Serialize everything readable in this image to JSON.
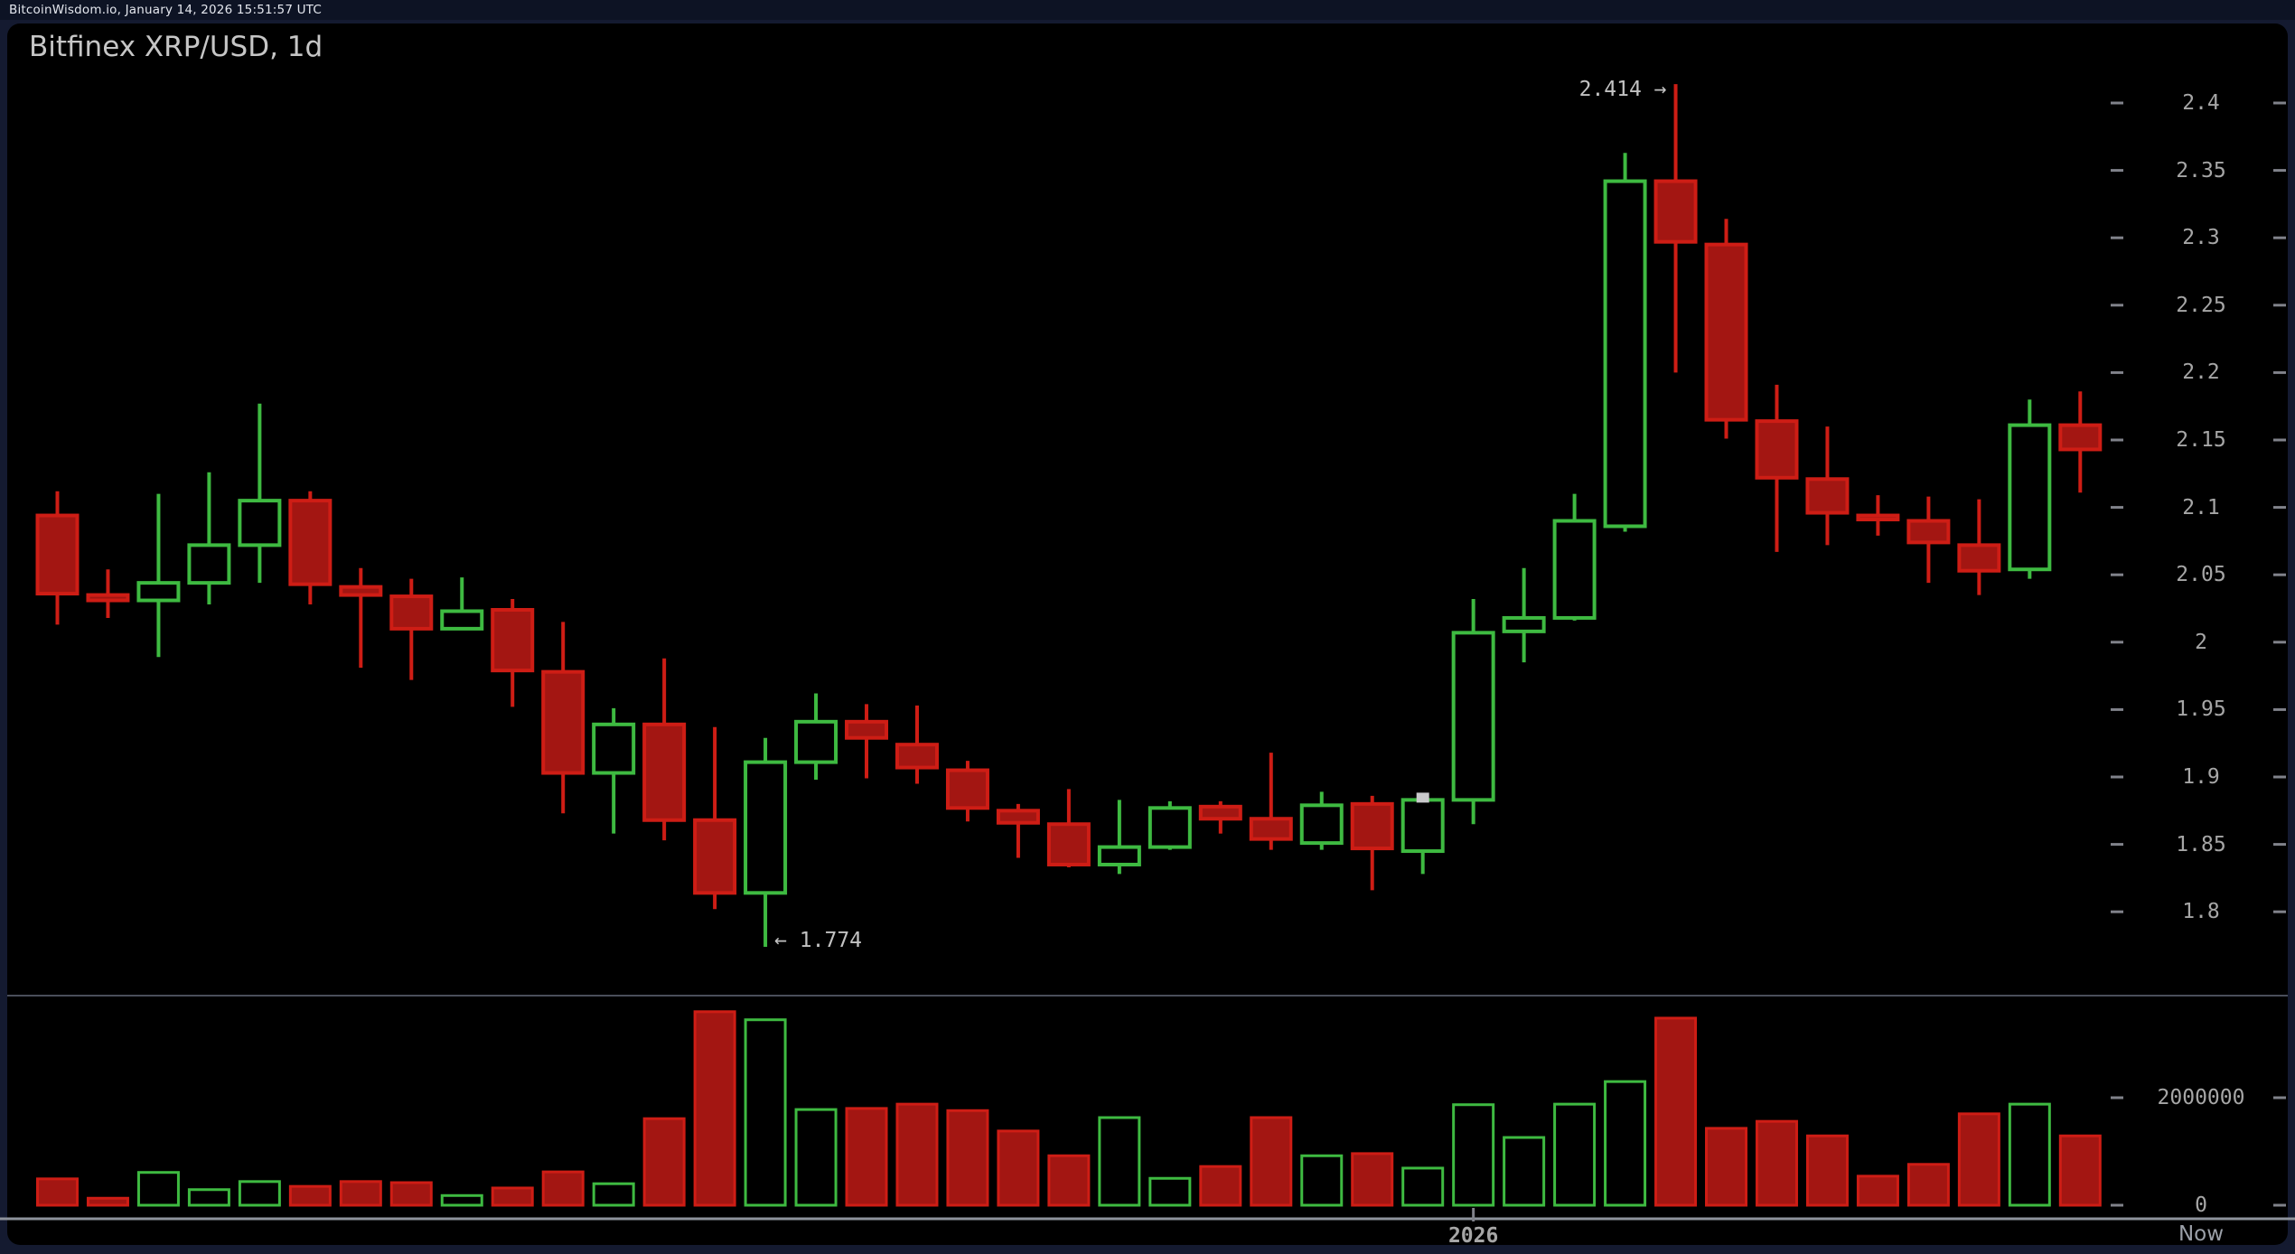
{
  "header": {
    "status_text": "BitcoinWisdom.io, January 14, 2026 15:51:57 UTC"
  },
  "colors": {
    "up_green": "#3eba41",
    "down_fill": "#a31612",
    "down_stroke": "#ce1d15",
    "hollow_fill": "#000000",
    "axis_text": "#a6a6a6",
    "annotation_text": "#c2c2c2",
    "divider": "#4a4e5a",
    "axis_line": "#8e939c",
    "tick": "#80828a",
    "last_price_marker": "#c9c9cb",
    "canvas_bg": "#000000",
    "page_bg": "#141a30",
    "topbar_bg": "#0d1324"
  },
  "chart_data": {
    "type": "candlestick",
    "title": "Bitfinex XRP/USD, 1d",
    "timeframe": "1d",
    "annotations": {
      "high": "2.414 →",
      "low": "← 1.774"
    },
    "high_marker": {
      "candle": 33,
      "price": 2.414
    },
    "low_marker": {
      "candle": 15,
      "price": 1.774
    },
    "last_price_marker": {
      "candle": 28,
      "price": 1.885
    },
    "x_axis": {
      "year_label": "2026",
      "now_label": "Now",
      "year_tick_candle": 29
    },
    "price_ticks": [
      {
        "label": "2.4",
        "value": 2.4
      },
      {
        "label": "2.35",
        "value": 2.35
      },
      {
        "label": "2.3",
        "value": 2.3
      },
      {
        "label": "2.25",
        "value": 2.25
      },
      {
        "label": "2.2",
        "value": 2.2
      },
      {
        "label": "2.15",
        "value": 2.15
      },
      {
        "label": "2.1",
        "value": 2.1
      },
      {
        "label": "2.05",
        "value": 2.05
      },
      {
        "label": "2",
        "value": 2.0
      },
      {
        "label": "1.95",
        "value": 1.95
      },
      {
        "label": "1.9",
        "value": 1.9
      },
      {
        "label": "1.85",
        "value": 1.85
      },
      {
        "label": "1.8",
        "value": 1.8
      }
    ],
    "volume_ticks": [
      {
        "label": "2000000",
        "value": 2000000
      },
      {
        "label": "0",
        "value": 0
      }
    ],
    "ylim": [
      1.738,
      2.459
    ],
    "volume_ylim": [
      0,
      3900000
    ],
    "grid": false,
    "candles": [
      {
        "o": 2.094,
        "h": 2.112,
        "l": 2.013,
        "c": 2.036,
        "v": 490000
      },
      {
        "o": 2.035,
        "h": 2.054,
        "l": 2.018,
        "c": 2.031,
        "v": 130000
      },
      {
        "o": 2.031,
        "h": 2.11,
        "l": 1.989,
        "c": 2.044,
        "v": 610000
      },
      {
        "o": 2.044,
        "h": 2.126,
        "l": 2.028,
        "c": 2.072,
        "v": 290000
      },
      {
        "o": 2.072,
        "h": 2.177,
        "l": 2.044,
        "c": 2.105,
        "v": 440000
      },
      {
        "o": 2.105,
        "h": 2.112,
        "l": 2.028,
        "c": 2.043,
        "v": 350000
      },
      {
        "o": 2.041,
        "h": 2.055,
        "l": 1.981,
        "c": 2.035,
        "v": 440000
      },
      {
        "o": 2.034,
        "h": 2.047,
        "l": 1.972,
        "c": 2.01,
        "v": 420000
      },
      {
        "o": 2.01,
        "h": 2.048,
        "l": 2.009,
        "c": 2.023,
        "v": 180000
      },
      {
        "o": 2.024,
        "h": 2.032,
        "l": 1.952,
        "c": 1.979,
        "v": 320000
      },
      {
        "o": 1.978,
        "h": 2.015,
        "l": 1.873,
        "c": 1.903,
        "v": 620000
      },
      {
        "o": 1.903,
        "h": 1.951,
        "l": 1.858,
        "c": 1.939,
        "v": 400000
      },
      {
        "o": 1.939,
        "h": 1.988,
        "l": 1.853,
        "c": 1.868,
        "v": 1610000
      },
      {
        "o": 1.868,
        "h": 1.937,
        "l": 1.802,
        "c": 1.814,
        "v": 3600000
      },
      {
        "o": 1.814,
        "h": 1.929,
        "l": 1.774,
        "c": 1.911,
        "v": 3450000
      },
      {
        "o": 1.911,
        "h": 1.962,
        "l": 1.898,
        "c": 1.941,
        "v": 1780000
      },
      {
        "o": 1.941,
        "h": 1.954,
        "l": 1.899,
        "c": 1.929,
        "v": 1800000
      },
      {
        "o": 1.924,
        "h": 1.953,
        "l": 1.895,
        "c": 1.907,
        "v": 1880000
      },
      {
        "o": 1.905,
        "h": 1.912,
        "l": 1.867,
        "c": 1.877,
        "v": 1760000
      },
      {
        "o": 1.875,
        "h": 1.88,
        "l": 1.84,
        "c": 1.866,
        "v": 1380000
      },
      {
        "o": 1.865,
        "h": 1.891,
        "l": 1.833,
        "c": 1.835,
        "v": 920000
      },
      {
        "o": 1.835,
        "h": 1.883,
        "l": 1.828,
        "c": 1.848,
        "v": 1630000
      },
      {
        "o": 1.848,
        "h": 1.882,
        "l": 1.846,
        "c": 1.877,
        "v": 500000
      },
      {
        "o": 1.878,
        "h": 1.882,
        "l": 1.858,
        "c": 1.869,
        "v": 720000
      },
      {
        "o": 1.869,
        "h": 1.918,
        "l": 1.846,
        "c": 1.854,
        "v": 1630000
      },
      {
        "o": 1.851,
        "h": 1.889,
        "l": 1.846,
        "c": 1.879,
        "v": 920000
      },
      {
        "o": 1.88,
        "h": 1.886,
        "l": 1.816,
        "c": 1.847,
        "v": 960000
      },
      {
        "o": 1.845,
        "h": 1.883,
        "l": 1.828,
        "c": 1.883,
        "v": 690000
      },
      {
        "o": 1.883,
        "h": 2.032,
        "l": 1.865,
        "c": 2.007,
        "v": 1870000
      },
      {
        "o": 2.008,
        "h": 2.055,
        "l": 1.985,
        "c": 2.018,
        "v": 1260000
      },
      {
        "o": 2.018,
        "h": 2.11,
        "l": 2.016,
        "c": 2.09,
        "v": 1880000
      },
      {
        "o": 2.086,
        "h": 2.363,
        "l": 2.082,
        "c": 2.342,
        "v": 2300000
      },
      {
        "o": 2.342,
        "h": 2.414,
        "l": 2.2,
        "c": 2.297,
        "v": 3480000
      },
      {
        "o": 2.295,
        "h": 2.314,
        "l": 2.151,
        "c": 2.165,
        "v": 1430000
      },
      {
        "o": 2.164,
        "h": 2.191,
        "l": 2.067,
        "c": 2.122,
        "v": 1560000
      },
      {
        "o": 2.121,
        "h": 2.16,
        "l": 2.072,
        "c": 2.096,
        "v": 1290000
      },
      {
        "o": 2.094,
        "h": 2.109,
        "l": 2.079,
        "c": 2.091,
        "v": 540000
      },
      {
        "o": 2.09,
        "h": 2.108,
        "l": 2.044,
        "c": 2.074,
        "v": 760000
      },
      {
        "o": 2.072,
        "h": 2.106,
        "l": 2.035,
        "c": 2.053,
        "v": 1700000
      },
      {
        "o": 2.054,
        "h": 2.18,
        "l": 2.047,
        "c": 2.161,
        "v": 1880000
      },
      {
        "o": 2.161,
        "h": 2.186,
        "l": 2.111,
        "c": 2.143,
        "v": 1290000
      }
    ]
  }
}
